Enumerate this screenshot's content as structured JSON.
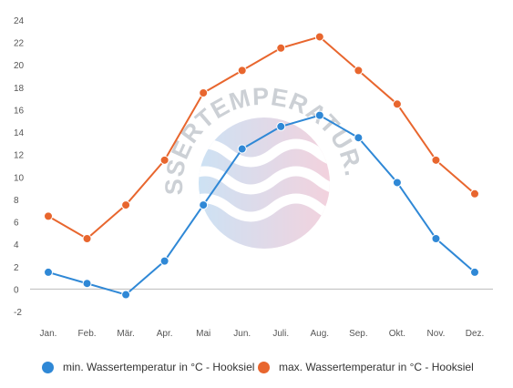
{
  "chart_data": {
    "type": "line",
    "categories": [
      "Jan.",
      "Feb.",
      "Mär.",
      "Apr.",
      "Mai",
      "Jun.",
      "Juli.",
      "Aug.",
      "Sep.",
      "Okt.",
      "Nov.",
      "Dez."
    ],
    "series": [
      {
        "name": "min. Wassertemperatur in °C - Hooksiel",
        "color": "#2f88d6",
        "values": [
          1.5,
          0.5,
          -0.5,
          2.5,
          7.5,
          12.5,
          14.5,
          15.5,
          13.5,
          9.5,
          4.5,
          1.5
        ]
      },
      {
        "name": "max. Wassertemperatur in °C - Hooksiel",
        "color": "#e8662e",
        "values": [
          6.5,
          4.5,
          7.5,
          11.5,
          17.5,
          19.5,
          21.5,
          22.5,
          19.5,
          16.5,
          11.5,
          8.5
        ]
      }
    ],
    "y_ticks": [
      "24",
      "22",
      "20",
      "18",
      "16",
      "14",
      "12",
      "10",
      "8",
      "6",
      "4",
      "2",
      "0",
      "-2"
    ],
    "ylim": [
      -2,
      24
    ],
    "grid": false,
    "legend_position": "bottom",
    "title": "",
    "xlabel": "",
    "ylabel": ""
  },
  "watermark": {
    "text": "WASSERTEMPERATUR.ORG",
    "icon": "waves-icon"
  }
}
